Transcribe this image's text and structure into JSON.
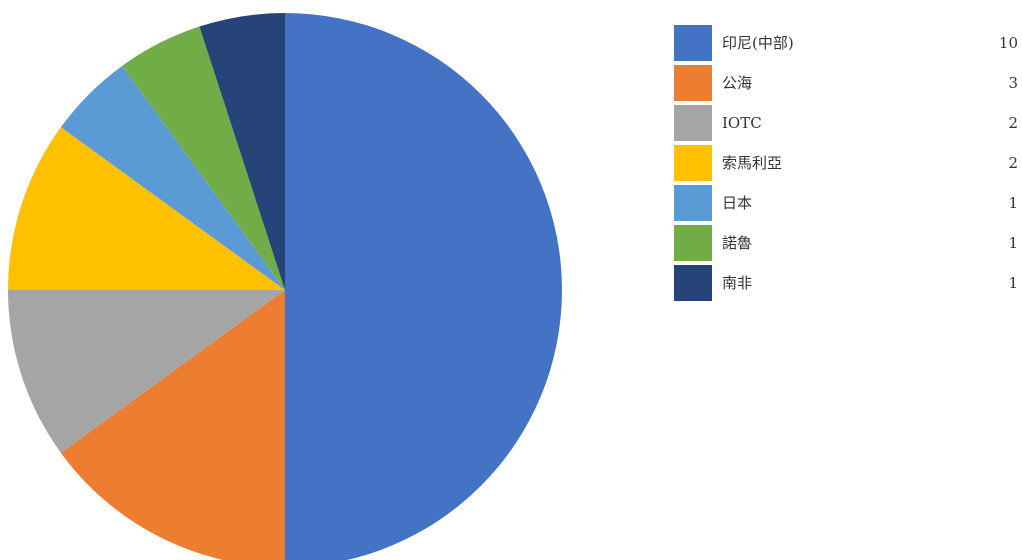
{
  "chart_data": {
    "type": "pie",
    "categories": [
      "印尼(中部)",
      "公海",
      "IOTC",
      "索馬利亞",
      "日本",
      "諾魯",
      "南非"
    ],
    "values": [
      10,
      3,
      2,
      2,
      1,
      1,
      1
    ],
    "colors": [
      "#4472c4",
      "#ed7d31",
      "#a5a5a5",
      "#ffc000",
      "#5b9bd5",
      "#70ad47",
      "#264478"
    ],
    "legend": "right"
  }
}
